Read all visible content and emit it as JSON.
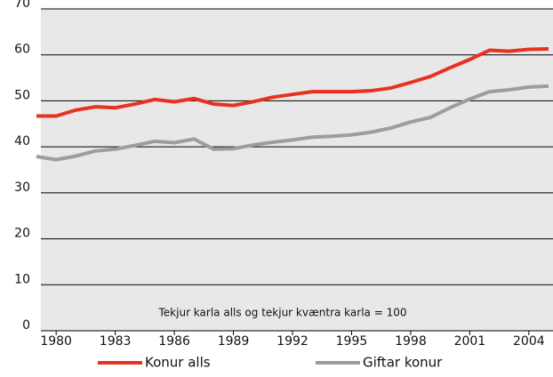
{
  "chart_data": {
    "type": "line",
    "annotation": "Tekjur karla alls og tekjur kvæntra karla = 100",
    "x": [
      1979,
      1980,
      1981,
      1982,
      1983,
      1984,
      1985,
      1986,
      1987,
      1988,
      1989,
      1990,
      1991,
      1992,
      1993,
      1994,
      1995,
      1996,
      1997,
      1998,
      1999,
      2000,
      2001,
      2002,
      2003,
      2004,
      2005
    ],
    "series": [
      {
        "name": "Konur alls",
        "color": "#e8311f",
        "values": [
          46.7,
          46.7,
          48,
          48.7,
          48.5,
          49.3,
          50.3,
          49.8,
          50.5,
          49.3,
          49,
          49.8,
          50.8,
          51.4,
          52,
          52,
          52,
          52.2,
          52.8,
          54,
          55.3,
          57.2,
          59,
          61,
          60.8,
          61.2,
          61.3
        ]
      },
      {
        "name": "Giftar konur",
        "color": "#9d9d9d",
        "values": [
          37.9,
          37.2,
          38,
          39.1,
          39.5,
          40.3,
          41.2,
          40.9,
          41.7,
          39.5,
          39.6,
          40.4,
          41,
          41.5,
          42.1,
          42.3,
          42.6,
          43.2,
          44.1,
          45.4,
          46.4,
          48.5,
          50.4,
          52,
          52.4,
          53,
          53.2
        ]
      }
    ],
    "xlim": [
      1979,
      2005
    ],
    "xticks": [
      1980,
      1983,
      1986,
      1989,
      1992,
      1995,
      1998,
      2001,
      2004
    ],
    "ylim": [
      0,
      70
    ],
    "yticks": [
      0,
      10,
      20,
      30,
      40,
      50,
      60,
      70
    ],
    "grid": true
  }
}
